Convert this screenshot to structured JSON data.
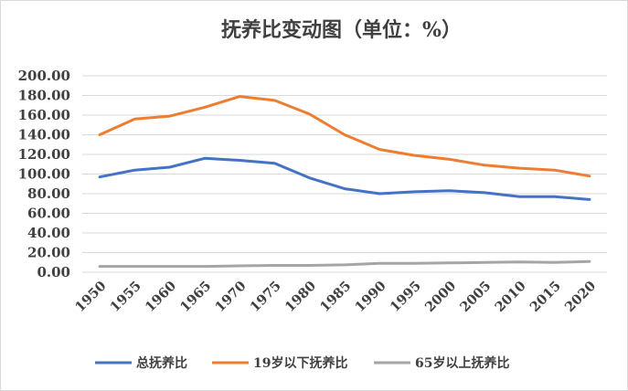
{
  "chart_data": {
    "type": "line",
    "title": "抚养比变动图（单位：%）",
    "x": [
      "1950",
      "1955",
      "1960",
      "1965",
      "1970",
      "1975",
      "1980",
      "1985",
      "1990",
      "1995",
      "2000",
      "2005",
      "2010",
      "2015",
      "2020"
    ],
    "series": [
      {
        "name": "总抚养比",
        "color": "#4472c4",
        "values": [
          97.0,
          104.0,
          107.0,
          116.0,
          114.0,
          111.0,
          96.0,
          85.0,
          80.0,
          82.0,
          83.0,
          81.0,
          77.0,
          77.0,
          74.0
        ]
      },
      {
        "name": "19岁以下抚养比",
        "color": "#ed7d31",
        "values": [
          140.0,
          156.0,
          159.0,
          168.0,
          179.0,
          175.0,
          161.0,
          140.0,
          125.0,
          119.0,
          115.0,
          109.0,
          106.0,
          104.0,
          98.0
        ]
      },
      {
        "name": "65岁以上抚养比",
        "color": "#a5a5a5",
        "values": [
          6.0,
          6.0,
          6.0,
          6.0,
          6.5,
          7.0,
          7.0,
          7.5,
          9.0,
          9.0,
          9.5,
          10.0,
          10.5,
          10.0,
          11.0
        ]
      }
    ],
    "y_ticks": [
      "0.00",
      "20.00",
      "40.00",
      "60.00",
      "80.00",
      "100.00",
      "120.00",
      "140.00",
      "160.00",
      "180.00",
      "200.00"
    ],
    "ylim": [
      0,
      200
    ],
    "grid": true,
    "legend": "bottom"
  }
}
